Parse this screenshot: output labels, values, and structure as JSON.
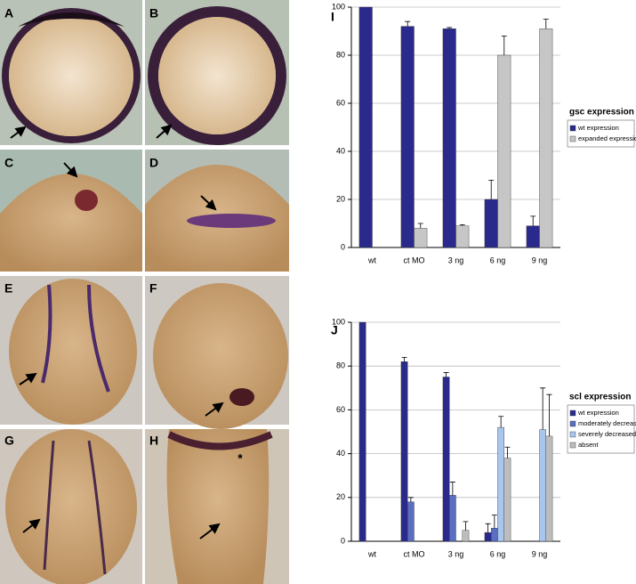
{
  "panels": [
    {
      "label": "A"
    },
    {
      "label": "B"
    },
    {
      "label": "C"
    },
    {
      "label": "D"
    },
    {
      "label": "E"
    },
    {
      "label": "F"
    },
    {
      "label": "G"
    },
    {
      "label": "H",
      "mark": "*"
    }
  ],
  "chart_data": [
    {
      "type": "bar",
      "panel_label": "I",
      "title": "gsc expression",
      "categories": [
        "wt",
        "ct MO",
        "3 ng",
        "6 ng",
        "9 ng"
      ],
      "series": [
        {
          "name": "wt expression",
          "color": "#2a2a8c",
          "values": [
            100,
            92,
            91,
            20,
            9
          ],
          "errors": [
            null,
            2,
            0.5,
            8,
            4
          ]
        },
        {
          "name": "expanded expression",
          "color": "#c6c6c6",
          "values": [
            0,
            8,
            9,
            80,
            91
          ],
          "errors": [
            null,
            2,
            0.5,
            8,
            4
          ]
        }
      ],
      "ylim": [
        0,
        100
      ],
      "yticks": [
        0,
        20,
        40,
        60,
        80,
        100
      ],
      "grid": true
    },
    {
      "type": "bar",
      "panel_label": "J",
      "title": "scl expression",
      "categories": [
        "wt",
        "ct MO",
        "3 ng",
        "6 ng",
        "9 ng"
      ],
      "series": [
        {
          "name": "wt expression",
          "color": "#2a2a8c",
          "values": [
            100,
            82,
            75,
            4,
            0
          ],
          "errors": [
            null,
            2,
            2,
            4,
            null
          ]
        },
        {
          "name": "moderately decreased",
          "color": "#5b6fc2",
          "values": [
            0,
            18,
            21,
            6,
            0
          ],
          "errors": [
            null,
            2,
            6,
            6,
            null
          ]
        },
        {
          "name": "severely decreased",
          "color": "#a9c6ee",
          "values": [
            0,
            0,
            0,
            52,
            51
          ],
          "errors": [
            null,
            null,
            null,
            5,
            19
          ]
        },
        {
          "name": "absent",
          "color": "#bdbdbd",
          "values": [
            0,
            0,
            5,
            38,
            48
          ],
          "errors": [
            null,
            null,
            4,
            5,
            19
          ]
        }
      ],
      "ylim": [
        0,
        100
      ],
      "yticks": [
        0,
        20,
        40,
        60,
        80,
        100
      ],
      "grid": true
    }
  ]
}
